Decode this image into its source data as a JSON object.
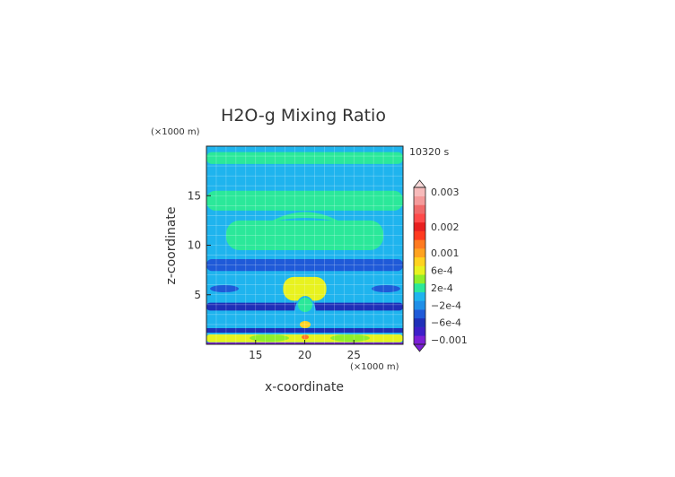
{
  "chart_data": {
    "type": "heatmap",
    "title": "H2O-g Mixing Ratio",
    "time_label": "10320 s",
    "x_axis": {
      "label": "x-coordinate",
      "unit": "(×1000 m)",
      "range": [
        10,
        30
      ],
      "ticks": [
        15,
        20,
        25
      ],
      "tick_labels": [
        "15",
        "20",
        "25"
      ]
    },
    "y_axis": {
      "label": "z-coordinate",
      "unit": "(×1000 m)",
      "range": [
        0,
        20
      ],
      "ticks": [
        5,
        10,
        15
      ],
      "tick_labels": [
        "5",
        "10",
        "15"
      ]
    },
    "grid": true,
    "colorbar": {
      "placement": "right",
      "extend": "both",
      "labels": [
        "0.003",
        "0.002",
        "0.001",
        "6e-4",
        "2e-4",
        "−2e-4",
        "−6e-4",
        "−0.001"
      ],
      "bins": [
        {
          "value": -0.001,
          "color": "#7b1fd6"
        },
        {
          "value": -0.0008,
          "color": "#3d1fc8"
        },
        {
          "value": -0.0006,
          "color": "#1f2fb8"
        },
        {
          "value": -0.0004,
          "color": "#1f5ad8"
        },
        {
          "value": -0.0002,
          "color": "#1f8fe8"
        },
        {
          "value": 0,
          "color": "#1fb4ee"
        },
        {
          "value": 0.0002,
          "color": "#2be89a"
        },
        {
          "value": 0.0004,
          "color": "#8fef2a"
        },
        {
          "value": 0.0006,
          "color": "#e8f21f"
        },
        {
          "value": 0.0008,
          "color": "#ffd21f"
        },
        {
          "value": 0.001,
          "color": "#ffa21f"
        },
        {
          "value": 0.0012,
          "color": "#ff7a1f"
        },
        {
          "value": 0.0015,
          "color": "#ff3a1f"
        },
        {
          "value": 0.002,
          "color": "#e81f1f"
        },
        {
          "value": 0.0023,
          "color": "#ff4a4a"
        },
        {
          "value": 0.0026,
          "color": "#f06a6a"
        },
        {
          "value": 0.0028,
          "color": "#f49a9a"
        },
        {
          "value": 0.003,
          "color": "#f7baba"
        }
      ]
    },
    "field_regions": [
      {
        "feature": "background",
        "x": [
          10,
          30
        ],
        "z": [
          0,
          20
        ],
        "value": 0
      },
      {
        "feature": "upper green band",
        "x": [
          10,
          30
        ],
        "z": [
          18.2,
          19.4
        ],
        "value": 0.0002
      },
      {
        "feature": "mid-upper green layer",
        "x": [
          10,
          30
        ],
        "z": [
          13.5,
          15.5
        ],
        "value": 0.0002
      },
      {
        "feature": "central green plume",
        "x": [
          12,
          28
        ],
        "z": [
          9.5,
          12.5
        ],
        "value": 0.0002
      },
      {
        "feature": "blue band",
        "x": [
          10,
          30
        ],
        "z": [
          7.4,
          8.6
        ],
        "value": -0.0004
      },
      {
        "feature": "dark blue band",
        "x": [
          10,
          30
        ],
        "z": [
          3.4,
          4.2
        ],
        "value": -0.0006
      },
      {
        "feature": "yellow core",
        "x": [
          17.8,
          22.2
        ],
        "z": [
          4.4,
          6.8
        ],
        "value": 0.0006
      },
      {
        "feature": "surface yellow",
        "x": [
          10,
          30
        ],
        "z": [
          0.2,
          1.0
        ],
        "value": 0.0006
      }
    ]
  }
}
